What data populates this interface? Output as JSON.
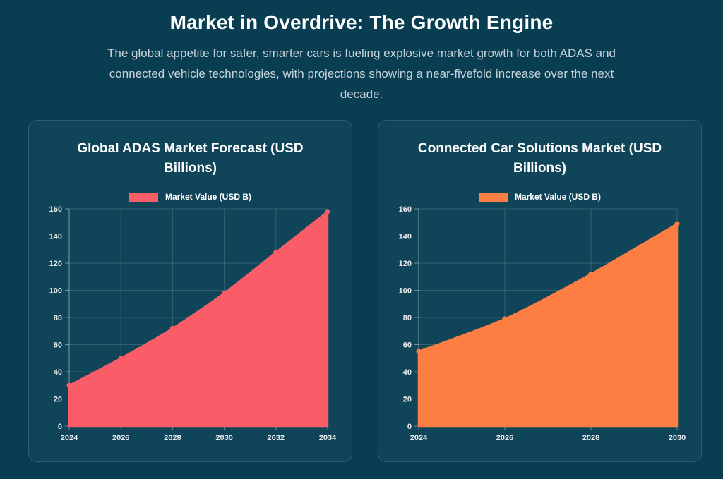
{
  "page": {
    "title": "Market in Overdrive: The Growth Engine",
    "subtitle": "The global appetite for safer, smarter cars is fueling explosive market growth for both ADAS and connected vehicle technologies, with projections showing a near-fivefold increase over the next decade."
  },
  "colors": {
    "page_bg": "#093D51",
    "card_bg": "#104559",
    "card_border": "#2B5D6E",
    "title_text": "#FFFFFF",
    "subtitle_text": "#C6D2DA",
    "tick_text": "#E9EDF0",
    "grid_line": "rgba(255,255,255,0.15)",
    "axis_line": "rgba(255,255,255,0.38)",
    "adas_series": "#FA5D68",
    "connected_series": "#FC7E42"
  },
  "chart_data": [
    {
      "type": "area",
      "title": "Global ADAS Market Forecast (USD Billions)",
      "legend": "Market Value (USD B)",
      "color": "#FA5D68",
      "x": [
        2024,
        2026,
        2028,
        2030,
        2032,
        2034
      ],
      "values": [
        30,
        50,
        72,
        98,
        128,
        158
      ],
      "xlabel": "",
      "ylabel": "",
      "ylim": [
        0,
        160
      ],
      "ytick_step": 20,
      "grid": true,
      "legend_position": "top"
    },
    {
      "type": "area",
      "title": "Connected Car Solutions Market (USD Billions)",
      "legend": "Market Value (USD B)",
      "color": "#FC7E42",
      "x": [
        2024,
        2026,
        2028,
        2030
      ],
      "values": [
        55,
        79,
        112,
        149
      ],
      "xlabel": "",
      "ylabel": "",
      "ylim": [
        0,
        160
      ],
      "ytick_step": 20,
      "grid": true,
      "legend_position": "top"
    }
  ]
}
